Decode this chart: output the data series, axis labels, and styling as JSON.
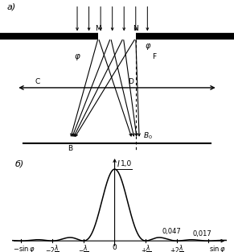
{
  "fig_width": 2.91,
  "fig_height": 3.13,
  "dpi": 100,
  "bg_color": "#ffffff",
  "label_a": "a)",
  "label_b": "б)",
  "line_color": "#000000",
  "sinc_peak": 1.0,
  "sinc_lobe1": 0.047,
  "sinc_lobe2": 0.017,
  "xlim_sinc": [
    -3.3,
    3.6
  ],
  "ylim_sinc": [
    -0.12,
    1.18
  ]
}
